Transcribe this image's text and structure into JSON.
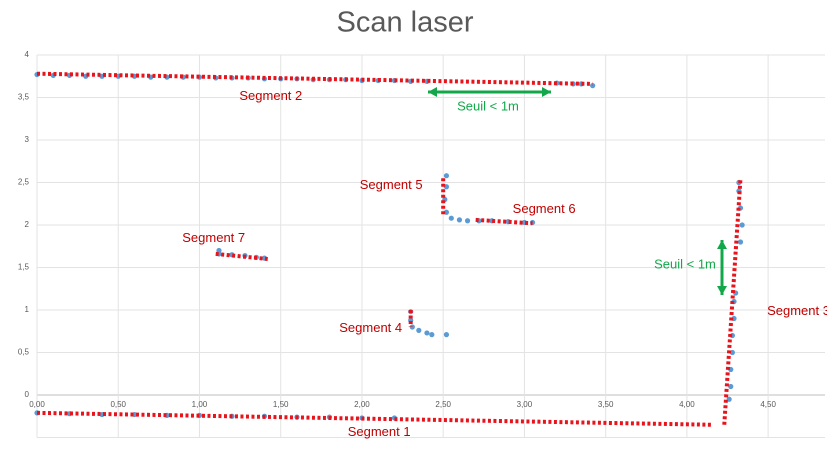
{
  "chart_data": {
    "type": "scatter",
    "title": "Scan laser",
    "xlim": [
      0,
      4.85
    ],
    "ylim": [
      -0.5,
      4
    ],
    "xticks": [
      {
        "value": 0,
        "label": "0,00"
      },
      {
        "value": 0.5,
        "label": "0,50"
      },
      {
        "value": 1,
        "label": "1,00"
      },
      {
        "value": 1.5,
        "label": "1,50"
      },
      {
        "value": 2,
        "label": "2,00"
      },
      {
        "value": 2.5,
        "label": "2,50"
      },
      {
        "value": 3,
        "label": "3,00"
      },
      {
        "value": 3.5,
        "label": "3,50"
      },
      {
        "value": 4,
        "label": "4,00"
      },
      {
        "value": 4.5,
        "label": "4,50"
      }
    ],
    "yticks": [
      0,
      {
        "value": 0.5,
        "label": "0,5"
      },
      1,
      {
        "value": 1.5,
        "label": "1,5"
      },
      2,
      {
        "value": 2.5,
        "label": "2,5"
      },
      3,
      {
        "value": 3.5,
        "label": "3,5"
      },
      4
    ],
    "grid": true,
    "series": [
      {
        "color": "#5b9bd5",
        "x": [
          0,
          0.1,
          0.2,
          0.3,
          0.4,
          0.5,
          0.6,
          0.7,
          0.8,
          0.9,
          1.0,
          1.1,
          1.2,
          1.3,
          1.4,
          1.5,
          1.6,
          1.7,
          1.8,
          1.9,
          2.0,
          2.1,
          2.2,
          2.3,
          2.4,
          3.2,
          3.3,
          3.35,
          3.42,
          0,
          0.2,
          0.4,
          0.6,
          0.8,
          1.0,
          1.2,
          1.4,
          1.6,
          1.8,
          2.0,
          2.2,
          4.26,
          4.27,
          4.27,
          4.28,
          4.28,
          4.29,
          4.29,
          4.3,
          4.33,
          4.34,
          4.33,
          4.32,
          4.32,
          2.52,
          2.52,
          2.51,
          2.52,
          2.55,
          2.6,
          2.65,
          2.72,
          2.8,
          2.9,
          3.0,
          3.05,
          1.12,
          1.12,
          1.2,
          1.28,
          1.35,
          1.4,
          2.3,
          2.3,
          2.31,
          2.35,
          2.4,
          2.43,
          2.52
        ],
        "y": [
          3.77,
          3.76,
          3.76,
          3.75,
          3.75,
          3.75,
          3.75,
          3.74,
          3.74,
          3.74,
          3.74,
          3.73,
          3.73,
          3.73,
          3.72,
          3.72,
          3.72,
          3.71,
          3.71,
          3.71,
          3.7,
          3.7,
          3.7,
          3.69,
          3.69,
          3.67,
          3.66,
          3.66,
          3.64,
          -0.21,
          -0.22,
          -0.23,
          -0.23,
          -0.24,
          -0.24,
          -0.25,
          -0.25,
          -0.26,
          -0.26,
          -0.27,
          -0.27,
          -0.05,
          0.1,
          0.3,
          0.5,
          0.7,
          0.9,
          1.1,
          1.2,
          1.8,
          2.0,
          2.2,
          2.4,
          2.5,
          2.58,
          2.45,
          2.3,
          2.15,
          2.08,
          2.06,
          2.05,
          2.05,
          2.05,
          2.04,
          2.03,
          2.03,
          1.7,
          1.66,
          1.65,
          1.64,
          1.62,
          1.61,
          0.98,
          0.88,
          0.8,
          0.76,
          0.73,
          0.71,
          0.71
        ]
      }
    ],
    "segments": [
      {
        "label": "Segment 1",
        "x": [
          0,
          4.15
        ],
        "y": [
          -0.21,
          -0.35
        ]
      },
      {
        "label": "Segment 2",
        "x": [
          0,
          3.42
        ],
        "y": [
          3.78,
          3.66
        ]
      },
      {
        "label": "Segment 3",
        "x": [
          4.23,
          4.33
        ],
        "y": [
          -0.35,
          2.55
        ]
      },
      {
        "label": "Segment 4",
        "x": [
          2.3,
          2.3
        ],
        "y": [
          1.0,
          0.8
        ]
      },
      {
        "label": "Segment 5",
        "x": [
          2.5,
          2.5
        ],
        "y": [
          2.55,
          2.1
        ]
      },
      {
        "label": "Segment 6",
        "x": [
          2.7,
          3.05
        ],
        "y": [
          2.06,
          2.02
        ]
      },
      {
        "label": "Segment 7",
        "x": [
          1.1,
          1.42
        ],
        "y": [
          1.66,
          1.6
        ]
      }
    ],
    "segment_color": "#e8131b",
    "annotations": [
      "Seuil < 1m",
      "Seuil < 1m"
    ],
    "annotation_color": "#12a84a"
  }
}
